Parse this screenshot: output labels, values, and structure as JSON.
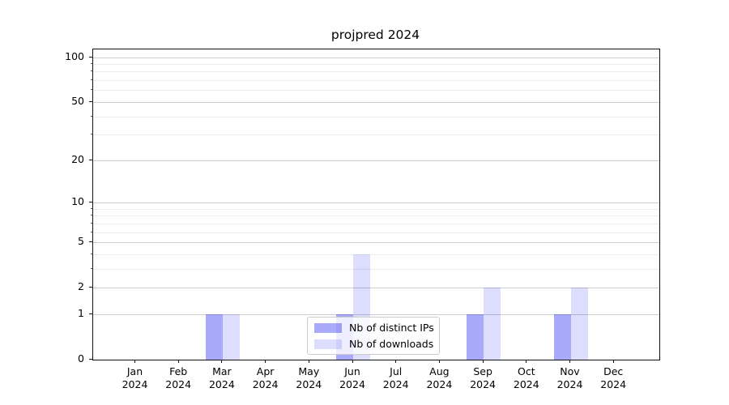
{
  "title": "projpred 2024",
  "chart_data": {
    "type": "bar",
    "title": "projpred 2024",
    "x_months": [
      "Jan",
      "Feb",
      "Mar",
      "Apr",
      "May",
      "Jun",
      "Jul",
      "Aug",
      "Sep",
      "Oct",
      "Nov",
      "Dec"
    ],
    "x_year": "2024",
    "series": [
      {
        "name": "Nb of distinct IPs",
        "color": "rgba(0,0,240,0.335)",
        "values": [
          0,
          0,
          1,
          0,
          0,
          1,
          0,
          0,
          1,
          0,
          1,
          0
        ]
      },
      {
        "name": "Nb of downloads",
        "color": "rgba(0,0,240,0.135)",
        "values": [
          0,
          0,
          1,
          0,
          0,
          4,
          0,
          0,
          2,
          0,
          2,
          0
        ]
      }
    ],
    "y_scale": "log1p",
    "ylim": [
      0,
      112.6
    ],
    "y_major_ticks": [
      0,
      1,
      2,
      5,
      10,
      20,
      50,
      100
    ],
    "y_minor_ticks": [
      3,
      4,
      6,
      7,
      8,
      9,
      30,
      40,
      60,
      70,
      80,
      90
    ],
    "grid": "horizontal",
    "legend_position": "lower-center-inside"
  },
  "colors": {
    "distinct_ips_bar": "#aaaaf9",
    "downloads_bar": "#dcdcfb",
    "grid_major": "#cdcdcd",
    "grid_minor": "#ececec",
    "axis": "#111111",
    "legend_border": "#cccccc",
    "background": "#ffffff"
  }
}
